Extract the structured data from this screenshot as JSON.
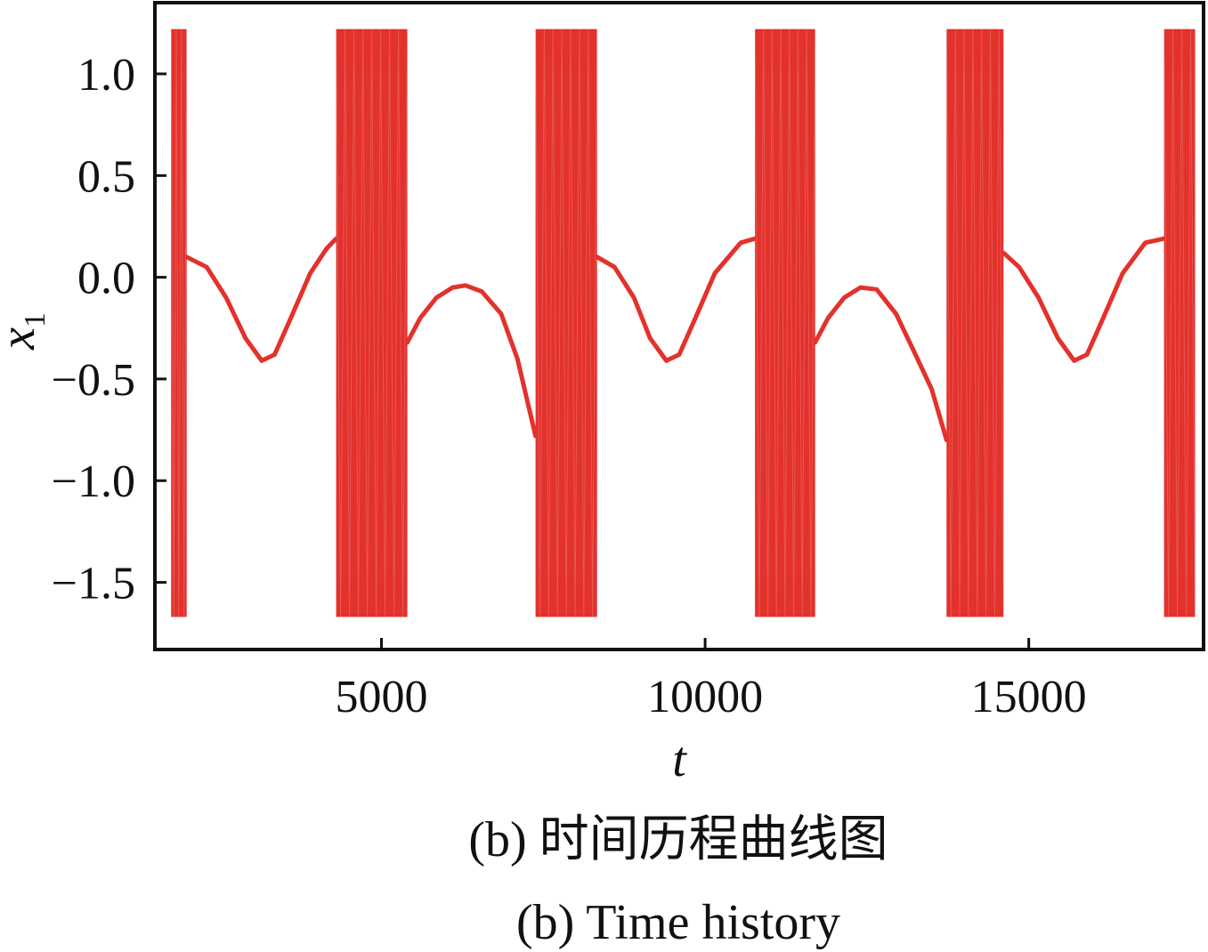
{
  "captions": {
    "cn": "(b)  时间历程曲线图",
    "en": "(b)  Time history"
  },
  "chart_data": {
    "type": "line",
    "xlabel": "t",
    "ylabel": "x",
    "ylabel_subscript": "1",
    "xlim": [
      1500,
      17700
    ],
    "ylim": [
      -1.83,
      1.35
    ],
    "xticks": [
      5000,
      10000,
      15000
    ],
    "yticks": [
      1.0,
      0.5,
      0.0,
      -0.5,
      -1.0,
      -1.5
    ],
    "ytick_labels": [
      "1.0",
      "0.5",
      "0.0",
      "−0.5",
      "−1.0",
      "−1.5"
    ],
    "grid": false,
    "series_color": "#e3312c",
    "oscillation_bands": [
      {
        "t_start": 1750,
        "t_end": 1990,
        "y_min": -1.67,
        "y_max": 1.22
      },
      {
        "t_start": 4300,
        "t_end": 5400,
        "y_min": -1.67,
        "y_max": 1.22
      },
      {
        "t_start": 7380,
        "t_end": 8330,
        "y_min": -1.67,
        "y_max": 1.22
      },
      {
        "t_start": 10770,
        "t_end": 11700,
        "y_min": -1.67,
        "y_max": 1.22
      },
      {
        "t_start": 13730,
        "t_end": 14610,
        "y_min": -1.67,
        "y_max": 1.22
      },
      {
        "t_start": 17090,
        "t_end": 17570,
        "y_min": -1.67,
        "y_max": 1.22
      }
    ],
    "slow_segments": [
      {
        "points": [
          [
            1990,
            0.1
          ],
          [
            2300,
            0.05
          ],
          [
            2600,
            -0.1
          ],
          [
            2900,
            -0.3
          ],
          [
            3150,
            -0.41
          ],
          [
            3350,
            -0.38
          ],
          [
            3600,
            -0.2
          ],
          [
            3900,
            0.02
          ],
          [
            4150,
            0.14
          ],
          [
            4300,
            0.19
          ]
        ]
      },
      {
        "points": [
          [
            5400,
            -0.32
          ],
          [
            5600,
            -0.2
          ],
          [
            5850,
            -0.1
          ],
          [
            6100,
            -0.05
          ],
          [
            6300,
            -0.04
          ],
          [
            6550,
            -0.07
          ],
          [
            6850,
            -0.18
          ],
          [
            7100,
            -0.4
          ],
          [
            7380,
            -0.78
          ]
        ]
      },
      {
        "points": [
          [
            8330,
            0.1
          ],
          [
            8600,
            0.05
          ],
          [
            8900,
            -0.1
          ],
          [
            9150,
            -0.3
          ],
          [
            9400,
            -0.41
          ],
          [
            9600,
            -0.38
          ],
          [
            9850,
            -0.2
          ],
          [
            10150,
            0.02
          ],
          [
            10550,
            0.17
          ],
          [
            10770,
            0.19
          ]
        ]
      },
      {
        "points": [
          [
            11700,
            -0.32
          ],
          [
            11900,
            -0.2
          ],
          [
            12150,
            -0.1
          ],
          [
            12400,
            -0.05
          ],
          [
            12650,
            -0.06
          ],
          [
            12950,
            -0.18
          ],
          [
            13250,
            -0.38
          ],
          [
            13500,
            -0.55
          ],
          [
            13730,
            -0.8
          ]
        ]
      },
      {
        "points": [
          [
            14610,
            0.12
          ],
          [
            14850,
            0.05
          ],
          [
            15150,
            -0.1
          ],
          [
            15450,
            -0.3
          ],
          [
            15700,
            -0.41
          ],
          [
            15900,
            -0.38
          ],
          [
            16150,
            -0.2
          ],
          [
            16450,
            0.02
          ],
          [
            16800,
            0.17
          ],
          [
            17090,
            0.19
          ]
        ]
      }
    ]
  }
}
